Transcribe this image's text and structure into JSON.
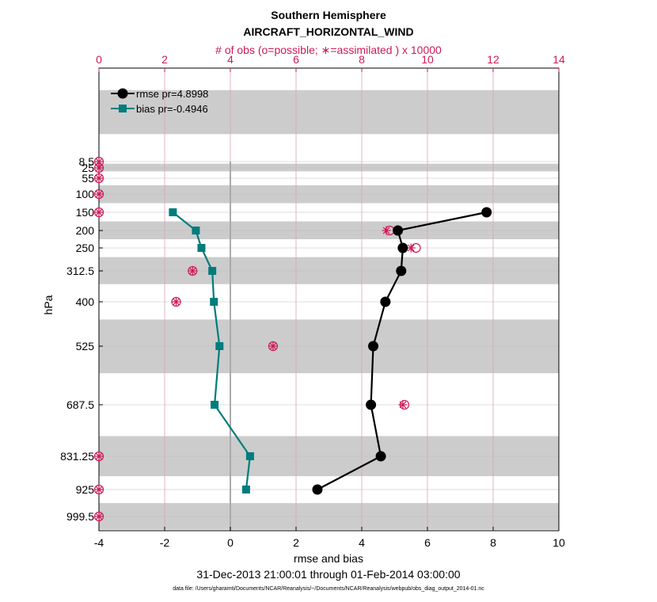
{
  "chart_data": {
    "type": "line",
    "title": "Southern Hemisphere",
    "subtitle": "AIRCRAFT_HORIZONTAL_WIND",
    "top_axis_label": "# of obs (o=possible; ∗=assimilated ) x 10000",
    "xlabel": "rmse and bias",
    "ylabel": "hPa",
    "date_range": "31-Dec-2013 21:00:01 through 01-Feb-2014 03:00:00",
    "footnote": "data file: /Users/gharamti/Documents/NCAR/Reanalysis/~/Documents/NCAR/Reanalysis/webpub/obs_diag_output_2014-01.nc",
    "xlim": [
      -4,
      10
    ],
    "x_ticks": [
      "-4",
      "-2",
      "0",
      "2",
      "4",
      "6",
      "8",
      "10"
    ],
    "obs_xlim": [
      0,
      14
    ],
    "obs_ticks": [
      "0",
      "2",
      "4",
      "6",
      "8",
      "10",
      "12",
      "14"
    ],
    "levels": [
      8.5,
      25,
      55,
      100,
      150,
      200,
      250,
      312.5,
      400,
      525,
      687.5,
      831.25,
      925,
      999.5
    ],
    "level_labels": [
      "8.5",
      "25",
      "55",
      "100",
      "150",
      "200",
      "250",
      "312.5",
      "400",
      "525",
      "687.5",
      "831.25",
      "925",
      "999.5"
    ],
    "shaded_bands_hPa": [
      [
        2,
        6
      ],
      [
        14,
        35
      ],
      [
        75,
        125
      ],
      [
        175,
        225
      ],
      [
        275,
        350
      ],
      [
        450,
        600
      ],
      [
        775,
        887.5
      ],
      [
        962.5,
        1037
      ]
    ],
    "legend": [
      "rmse pr=4.8998",
      "bias pr=-0.4946"
    ],
    "colors": {
      "rmse": "#000000",
      "bias": "#007c7c",
      "obs": "#cc1a55",
      "band": "#cccccc"
    },
    "series": [
      {
        "name": "rmse pr=4.8998",
        "levels": [
          150,
          200,
          250,
          312.5,
          400,
          525,
          687.5,
          831.25,
          925
        ],
        "values": [
          7.8,
          5.1,
          5.25,
          5.2,
          4.72,
          4.35,
          4.28,
          4.58,
          2.65
        ]
      },
      {
        "name": "bias pr=-0.4946",
        "levels": [
          150,
          200,
          250,
          312.5,
          400,
          525,
          687.5,
          831.25,
          925
        ],
        "values": [
          -1.75,
          -1.05,
          -0.88,
          -0.55,
          -0.5,
          -0.33,
          -0.48,
          0.6,
          0.48
        ]
      }
    ],
    "obs_possible": {
      "levels": [
        8.5,
        25,
        55,
        100,
        150,
        200,
        250,
        312.5,
        400,
        525,
        687.5,
        831.25,
        925,
        999.5
      ],
      "values": [
        0,
        0,
        0,
        0,
        0,
        8.85,
        9.65,
        2.85,
        2.35,
        5.3,
        9.3,
        0,
        0,
        0
      ]
    },
    "obs_assimilated": {
      "levels": [
        8.5,
        25,
        55,
        100,
        150,
        200,
        250,
        312.5,
        400,
        525,
        687.5,
        831.25,
        925,
        999.5
      ],
      "values": [
        0,
        0,
        0,
        0,
        0,
        8.75,
        9.5,
        2.85,
        2.35,
        5.3,
        9.25,
        0,
        0,
        0
      ]
    }
  }
}
